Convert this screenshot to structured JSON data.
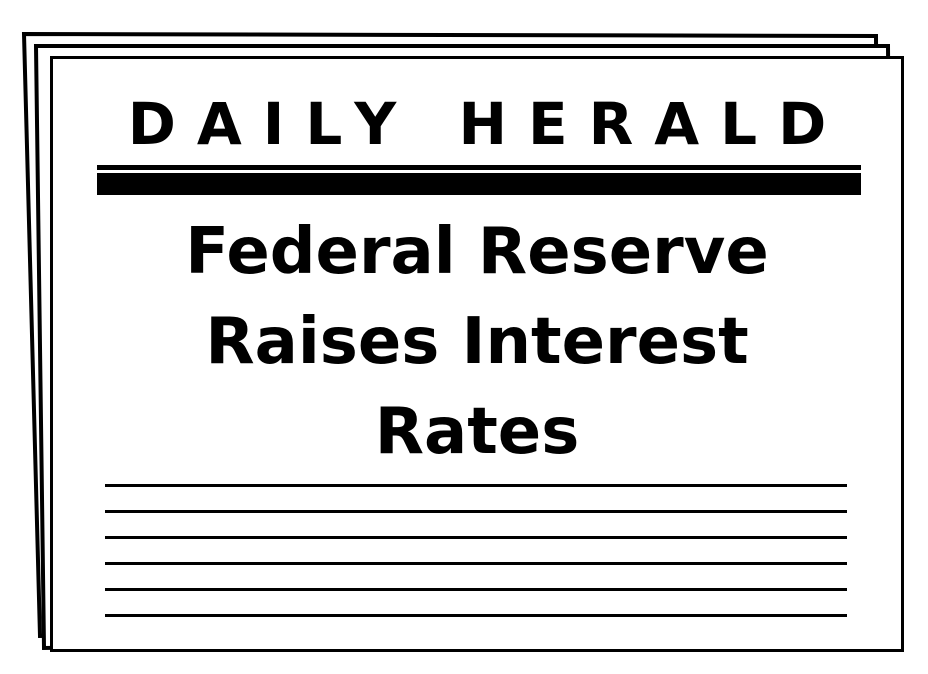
{
  "newspaper": {
    "masthead": "DAILY HERALD",
    "headline_lines": [
      "Federal Reserve",
      "Raises Interest",
      "Rates"
    ]
  },
  "colors": {
    "ink": "#000000",
    "paper": "#ffffff"
  }
}
